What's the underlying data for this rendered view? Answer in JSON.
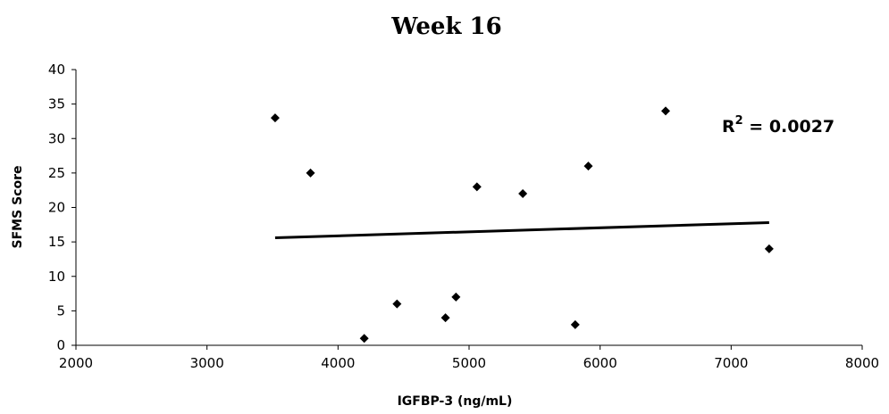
{
  "chart_data": {
    "type": "scatter",
    "title": "Week 16",
    "xlabel": "IGFBP-3 (ng/mL)",
    "ylabel": "SFMS Score",
    "xlim": [
      2000,
      8000
    ],
    "ylim": [
      0,
      40
    ],
    "xticks": [
      "2000",
      "3000",
      "4000",
      "5000",
      "6000",
      "7000",
      "8000"
    ],
    "yticks": [
      "0",
      "5",
      "10",
      "15",
      "20",
      "25",
      "30",
      "35",
      "40"
    ],
    "grid": false,
    "legend": "none",
    "points": [
      {
        "x": 3520,
        "y": 33
      },
      {
        "x": 3790,
        "y": 25
      },
      {
        "x": 4200,
        "y": 1
      },
      {
        "x": 4450,
        "y": 6
      },
      {
        "x": 4820,
        "y": 4
      },
      {
        "x": 4900,
        "y": 7
      },
      {
        "x": 5060,
        "y": 23
      },
      {
        "x": 5410,
        "y": 22
      },
      {
        "x": 5810,
        "y": 3
      },
      {
        "x": 5910,
        "y": 26
      },
      {
        "x": 6500,
        "y": 34
      },
      {
        "x": 7290,
        "y": 14
      }
    ],
    "trendline": {
      "x": [
        3520,
        7290
      ],
      "y": [
        15.6,
        17.8
      ]
    },
    "annotation": {
      "prefix": "R",
      "superscript": "2",
      "suffix": " = 0.0027"
    },
    "marker": "diamond",
    "color": "#000000"
  }
}
